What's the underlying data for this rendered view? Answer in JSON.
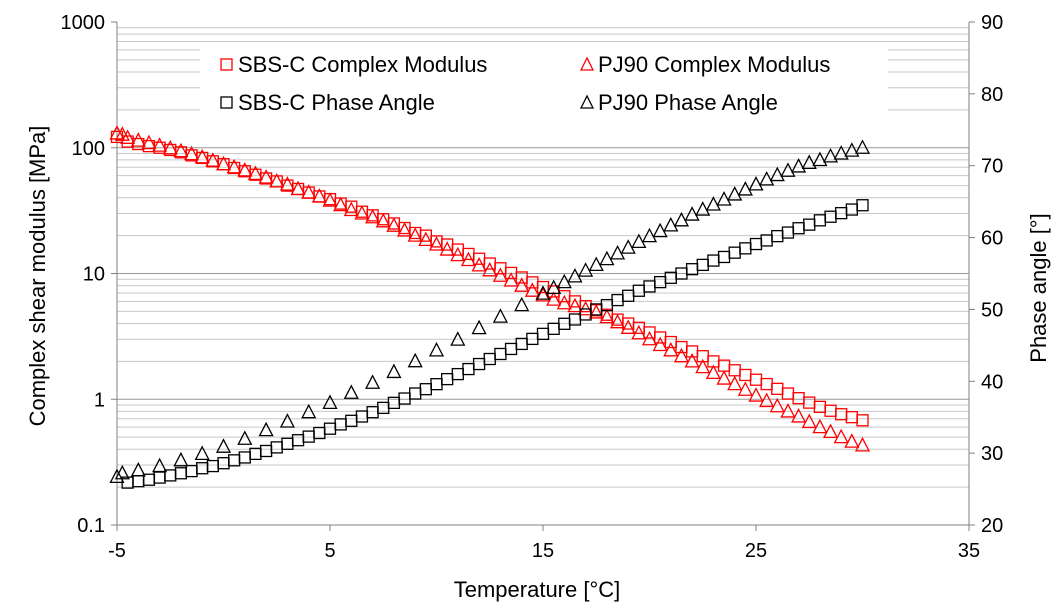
{
  "chart_data": {
    "type": "scatter",
    "xlabel": "Temperature [°C]",
    "ylabel_left": "Complex shear modulus [MPa]",
    "ylabel_right": "Phase angle [°]",
    "xlim": [
      -5,
      35
    ],
    "xticks": [
      -5,
      5,
      15,
      25,
      35
    ],
    "xtick_labels": [
      "-5",
      "5",
      "15",
      "25",
      "35"
    ],
    "ylim_left": [
      0.1,
      1000
    ],
    "yscale_left": "log",
    "yticks_left": [
      0.1,
      1,
      10,
      100,
      1000
    ],
    "ytick_labels_left": [
      "0.1",
      "1",
      "10",
      "100",
      "1000"
    ],
    "ylim_right": [
      20,
      90
    ],
    "yticks_right": [
      20,
      30,
      40,
      50,
      60,
      70,
      80,
      90
    ],
    "ytick_labels_right": [
      "20",
      "30",
      "40",
      "50",
      "60",
      "70",
      "80",
      "90"
    ],
    "grid": "horizontal",
    "legend_position": "top-center",
    "series": [
      {
        "name": "SBS-C Complex Modulus",
        "marker": "square",
        "color": "#ff0000",
        "axis": "left",
        "x": [
          -5.0,
          -4.5,
          -4.0,
          -3.5,
          -3.0,
          -2.5,
          -2.0,
          -1.5,
          -1.0,
          -0.5,
          0.0,
          0.5,
          1.0,
          1.5,
          2.0,
          2.5,
          3.0,
          3.5,
          4.0,
          4.5,
          5.0,
          5.5,
          6.0,
          6.5,
          7.0,
          7.5,
          8.0,
          8.5,
          9.0,
          9.5,
          10.0,
          10.5,
          11.0,
          11.5,
          12.0,
          12.5,
          13.0,
          13.5,
          14.0,
          14.5,
          15.0,
          15.5,
          16.0,
          16.5,
          17.0,
          17.5,
          18.0,
          18.5,
          19.0,
          19.5,
          20.0,
          20.5,
          21.0,
          21.5,
          22.0,
          22.5,
          23.0,
          23.5,
          24.0,
          24.5,
          25.0,
          25.5,
          26.0,
          26.5,
          27.0,
          27.5,
          28.0,
          28.5,
          29.0,
          29.5,
          30.0
        ],
        "y": [
          122,
          112,
          107,
          103,
          100,
          96,
          92,
          87,
          83,
          78,
          74,
          69,
          65,
          61,
          57,
          54,
          50,
          47,
          44,
          41,
          39,
          36,
          34,
          31,
          29,
          27,
          25,
          23,
          21,
          20,
          18,
          17,
          15.5,
          14.3,
          13.1,
          12.0,
          11.0,
          10.1,
          9.3,
          8.5,
          7.8,
          7.2,
          6.6,
          6.0,
          5.5,
          5.1,
          4.7,
          4.3,
          4.0,
          3.7,
          3.4,
          3.1,
          2.85,
          2.6,
          2.4,
          2.2,
          2.0,
          1.85,
          1.7,
          1.56,
          1.43,
          1.32,
          1.21,
          1.11,
          1.02,
          0.94,
          0.87,
          0.81,
          0.76,
          0.72,
          0.68
        ]
      },
      {
        "name": "PJ90 Complex Modulus",
        "marker": "triangle",
        "color": "#ff0000",
        "axis": "left",
        "x": [
          -5.0,
          -4.75,
          -4.5,
          -4.0,
          -3.5,
          -3.0,
          -2.5,
          -2.0,
          -1.5,
          -1.0,
          -0.5,
          0.0,
          0.5,
          1.0,
          1.5,
          2.0,
          2.5,
          3.0,
          3.5,
          4.0,
          4.5,
          5.0,
          5.5,
          6.0,
          6.5,
          7.0,
          7.5,
          8.0,
          8.5,
          9.0,
          9.5,
          10.0,
          10.5,
          11.0,
          11.5,
          12.0,
          12.5,
          13.0,
          13.5,
          14.0,
          14.5,
          15.0,
          15.5,
          16.0,
          16.5,
          17.0,
          17.5,
          18.0,
          18.5,
          19.0,
          19.5,
          20.0,
          20.5,
          21.0,
          21.5,
          22.0,
          22.5,
          23.0,
          23.5,
          24.0,
          24.5,
          25.0,
          25.5,
          26.0,
          26.5,
          27.0,
          27.5,
          28.0,
          28.5,
          29.0,
          29.5,
          30.0
        ],
        "y": [
          130,
          127,
          120,
          114,
          109,
          104,
          99,
          94,
          89,
          84,
          79,
          74,
          70,
          66,
          62,
          58,
          54,
          51,
          47,
          44,
          41,
          38,
          35,
          32,
          30,
          28,
          26,
          24,
          22,
          20,
          18.5,
          17,
          15.5,
          14.0,
          12.8,
          11.6,
          10.6,
          9.6,
          8.8,
          8.0,
          7.3,
          6.7,
          6.2,
          5.8,
          5.5,
          5.2,
          4.9,
          4.5,
          4.1,
          3.7,
          3.35,
          3.0,
          2.7,
          2.45,
          2.2,
          2.0,
          1.8,
          1.62,
          1.46,
          1.32,
          1.19,
          1.07,
          0.97,
          0.88,
          0.8,
          0.73,
          0.66,
          0.6,
          0.55,
          0.5,
          0.46,
          0.43
        ]
      },
      {
        "name": "SBS-C Phase Angle",
        "marker": "square",
        "color": "#000000",
        "axis": "right",
        "x": [
          -4.5,
          -4.0,
          -3.5,
          -3.0,
          -2.5,
          -2.0,
          -1.5,
          -1.0,
          -0.5,
          0.0,
          0.5,
          1.0,
          1.5,
          2.0,
          2.5,
          3.0,
          3.5,
          4.0,
          4.5,
          5.0,
          5.5,
          6.0,
          6.5,
          7.0,
          7.5,
          8.0,
          8.5,
          9.0,
          9.5,
          10.0,
          10.5,
          11.0,
          11.5,
          12.0,
          12.5,
          13.0,
          13.5,
          14.0,
          14.5,
          15.0,
          15.5,
          16.0,
          16.5,
          17.0,
          17.5,
          18.0,
          18.5,
          19.0,
          19.5,
          20.0,
          20.5,
          21.0,
          21.5,
          22.0,
          22.5,
          23.0,
          23.5,
          24.0,
          24.5,
          25.0,
          25.5,
          26.0,
          26.5,
          27.0,
          27.5,
          28.0,
          28.5,
          29.0,
          29.5,
          30.0
        ],
        "y": [
          25.9,
          26.1,
          26.3,
          26.6,
          26.9,
          27.2,
          27.5,
          27.9,
          28.2,
          28.6,
          29.0,
          29.4,
          29.9,
          30.3,
          30.8,
          31.3,
          31.8,
          32.3,
          32.8,
          33.4,
          34.0,
          34.5,
          35.1,
          35.7,
          36.3,
          37.0,
          37.6,
          38.3,
          38.9,
          39.6,
          40.3,
          41.0,
          41.7,
          42.4,
          43.1,
          43.8,
          44.5,
          45.2,
          45.9,
          46.6,
          47.3,
          48.0,
          48.6,
          49.3,
          50.0,
          50.6,
          51.3,
          51.9,
          52.6,
          53.2,
          53.8,
          54.4,
          55.0,
          55.6,
          56.2,
          56.8,
          57.3,
          57.9,
          58.5,
          59.1,
          59.6,
          60.2,
          60.7,
          61.3,
          61.8,
          62.4,
          62.9,
          63.4,
          63.9,
          64.5
        ]
      },
      {
        "name": "PJ90 Phase Angle",
        "marker": "triangle",
        "color": "#000000",
        "axis": "right",
        "x": [
          -5.0,
          -4.75,
          -4.0,
          -3.0,
          -2.0,
          -1.0,
          0.0,
          1.0,
          2.0,
          3.0,
          4.0,
          5.0,
          6.0,
          7.0,
          8.0,
          9.0,
          10.0,
          11.0,
          12.0,
          13.0,
          14.0,
          15.0,
          15.5,
          16.0,
          16.5,
          17.0,
          17.5,
          18.0,
          18.5,
          19.0,
          19.5,
          20.0,
          20.5,
          21.0,
          21.5,
          22.0,
          22.5,
          23.0,
          23.5,
          24.0,
          24.5,
          25.0,
          25.5,
          26.0,
          26.5,
          27.0,
          27.5,
          28.0,
          28.5,
          29.0,
          29.5,
          30.0
        ],
        "y": [
          26.7,
          27.2,
          27.6,
          28.2,
          29.0,
          29.9,
          30.9,
          32.0,
          33.2,
          34.4,
          35.7,
          37.0,
          38.4,
          39.8,
          41.3,
          42.8,
          44.3,
          45.8,
          47.4,
          49.0,
          50.6,
          52.2,
          53.0,
          53.8,
          54.6,
          55.4,
          56.2,
          57.0,
          57.8,
          58.6,
          59.4,
          60.2,
          60.9,
          61.7,
          62.4,
          63.2,
          63.9,
          64.6,
          65.3,
          66.0,
          66.7,
          67.4,
          68.1,
          68.7,
          69.3,
          69.9,
          70.4,
          70.8,
          71.3,
          71.7,
          72.1,
          72.5
        ]
      }
    ]
  }
}
